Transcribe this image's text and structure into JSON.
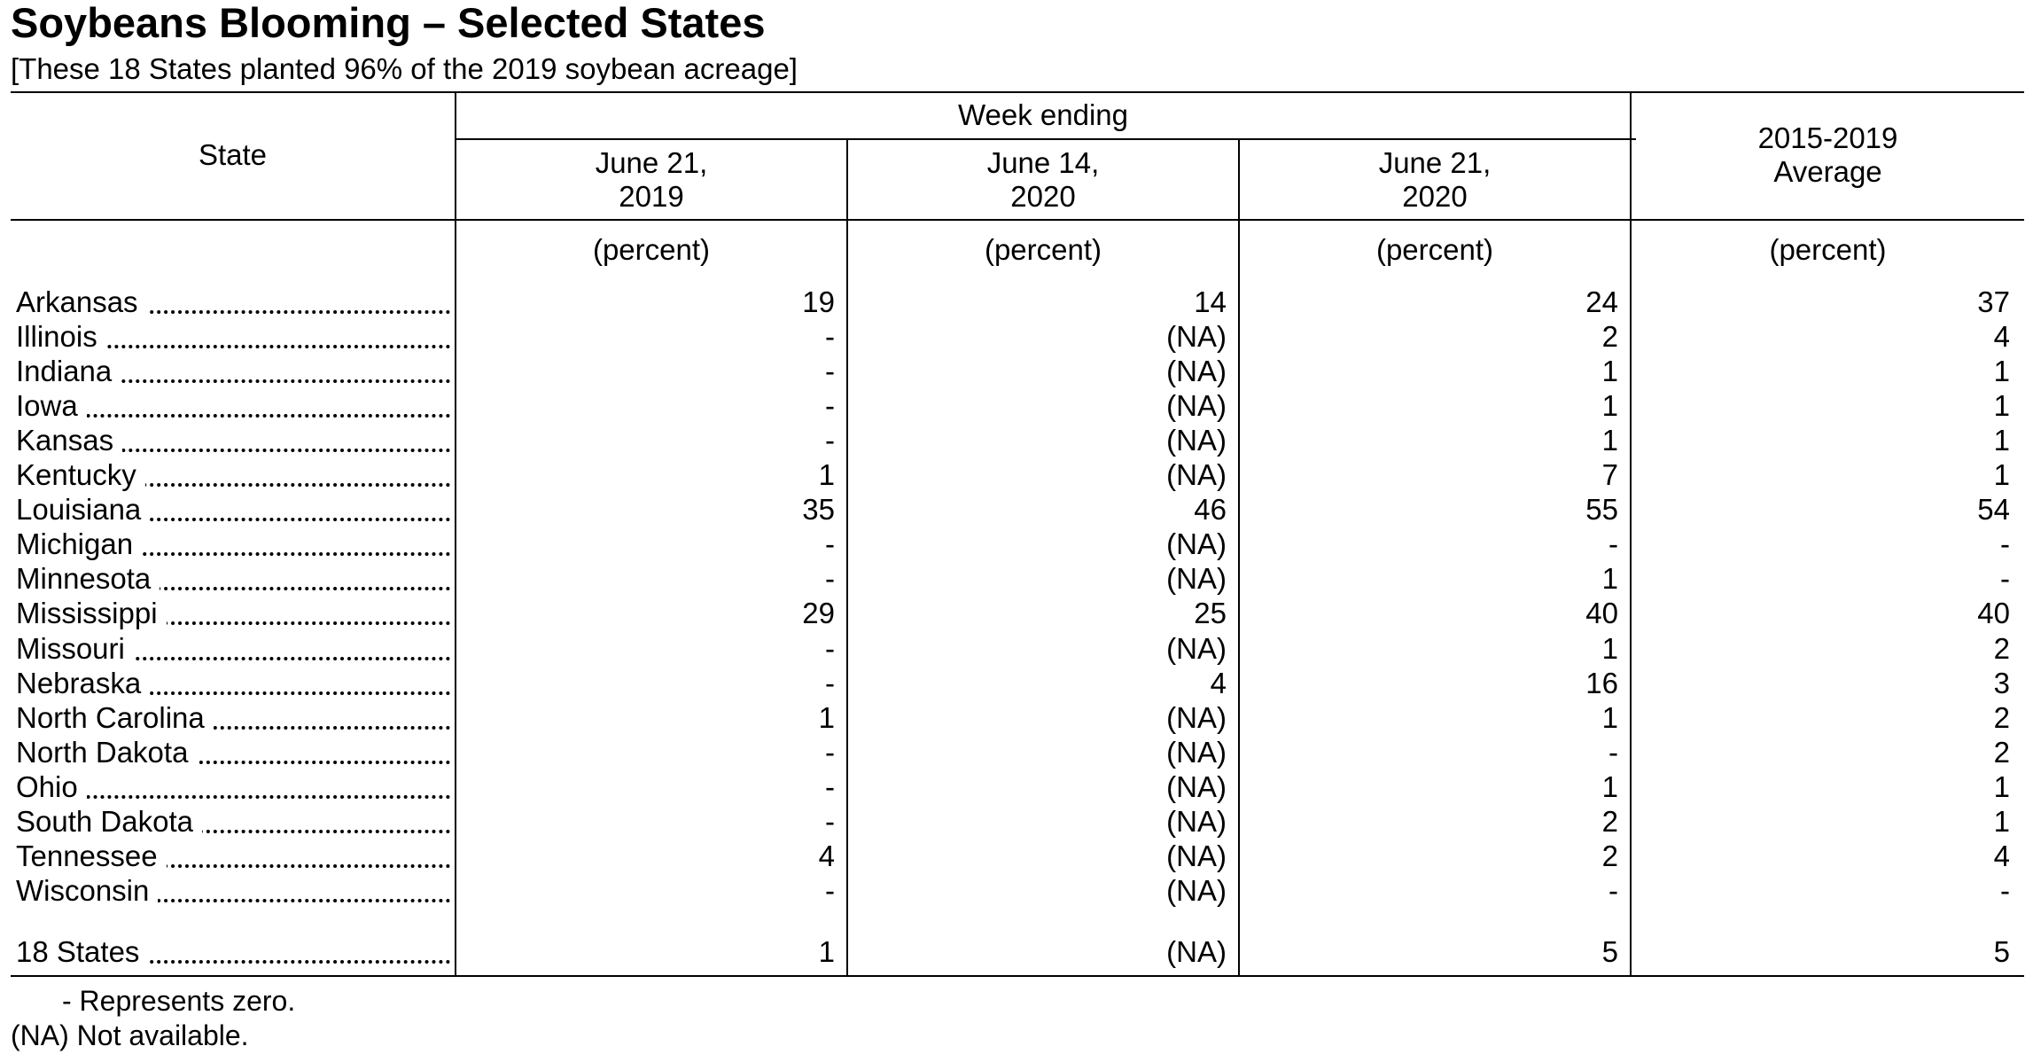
{
  "title": "Soybeans Blooming – Selected States",
  "subtitle": "[These 18 States planted 96% of the 2019 soybean acreage]",
  "header": {
    "state": "State",
    "week_ending": "Week ending",
    "col1_line1": "June 21,",
    "col1_line2": "2019",
    "col2_line1": "June 14,",
    "col2_line2": "2020",
    "col3_line1": "June 21,",
    "col3_line2": "2020",
    "col4_line1": "2015-2019",
    "col4_line2": "Average"
  },
  "units": [
    "(percent)",
    "(percent)",
    "(percent)",
    "(percent)"
  ],
  "rows": [
    {
      "state": "Arkansas",
      "v": [
        "19",
        "14",
        "24",
        "37"
      ]
    },
    {
      "state": "Illinois",
      "v": [
        "-",
        "(NA)",
        "2",
        "4"
      ]
    },
    {
      "state": "Indiana",
      "v": [
        "-",
        "(NA)",
        "1",
        "1"
      ]
    },
    {
      "state": "Iowa",
      "v": [
        "-",
        "(NA)",
        "1",
        "1"
      ]
    },
    {
      "state": "Kansas",
      "v": [
        "-",
        "(NA)",
        "1",
        "1"
      ]
    },
    {
      "state": "Kentucky",
      "v": [
        "1",
        "(NA)",
        "7",
        "1"
      ]
    },
    {
      "state": "Louisiana",
      "v": [
        "35",
        "46",
        "55",
        "54"
      ]
    },
    {
      "state": "Michigan",
      "v": [
        "-",
        "(NA)",
        "-",
        "-"
      ]
    },
    {
      "state": "Minnesota",
      "v": [
        "-",
        "(NA)",
        "1",
        "-"
      ]
    },
    {
      "state": "Mississippi",
      "v": [
        "29",
        "25",
        "40",
        "40"
      ]
    },
    {
      "state": "Missouri",
      "v": [
        "-",
        "(NA)",
        "1",
        "2"
      ]
    },
    {
      "state": "Nebraska",
      "v": [
        "-",
        "4",
        "16",
        "3"
      ]
    },
    {
      "state": "North Carolina",
      "v": [
        "1",
        "(NA)",
        "1",
        "2"
      ]
    },
    {
      "state": "North Dakota",
      "v": [
        "-",
        "(NA)",
        "-",
        "2"
      ]
    },
    {
      "state": "Ohio",
      "v": [
        "-",
        "(NA)",
        "1",
        "1"
      ]
    },
    {
      "state": "South Dakota",
      "v": [
        "-",
        "(NA)",
        "2",
        "1"
      ]
    },
    {
      "state": "Tennessee",
      "v": [
        "4",
        "(NA)",
        "2",
        "4"
      ]
    },
    {
      "state": "Wisconsin",
      "v": [
        "-",
        "(NA)",
        "-",
        "-"
      ]
    }
  ],
  "total": {
    "state": "18 States",
    "v": [
      "1",
      "(NA)",
      "5",
      "5"
    ]
  },
  "notes": {
    "zero": "- Represents zero.",
    "na": "(NA) Not available."
  }
}
